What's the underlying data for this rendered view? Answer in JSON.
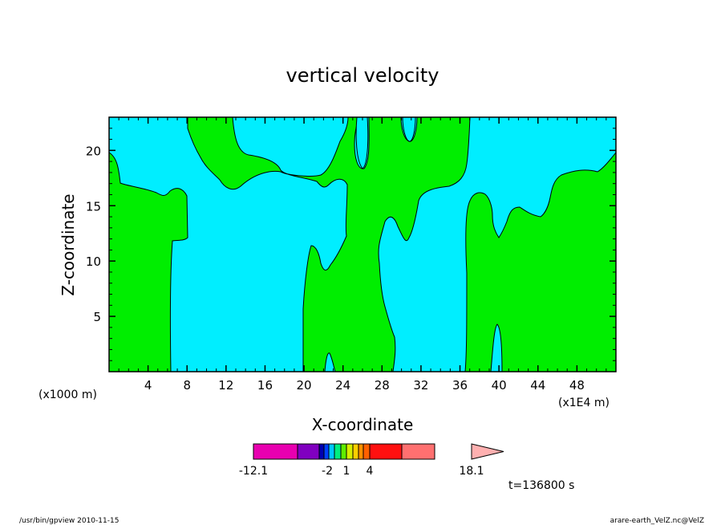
{
  "chart_data": {
    "type": "contour",
    "title": "vertical velocity",
    "xlabel": "X-coordinate",
    "ylabel": "Z-coordinate",
    "x_unit_left": "(x1000 m)",
    "x_unit_right": "(x1E4 m)",
    "x_ticks": [
      "4",
      "8",
      "12",
      "16",
      "20",
      "24",
      "28",
      "32",
      "36",
      "40",
      "44",
      "48"
    ],
    "y_ticks": [
      "5",
      "10",
      "15",
      "20"
    ],
    "xlim": [
      0,
      52
    ],
    "ylim": [
      0,
      23
    ],
    "fills": {
      "background": "#00eeff",
      "positive": "#00ee00"
    },
    "colorbar": {
      "colors": [
        "#e800b0",
        "#8000c0",
        "#0000b0",
        "#0040ff",
        "#00c8ff",
        "#00ee80",
        "#60ee00",
        "#d8ee00",
        "#ffd000",
        "#ff9000",
        "#ff6000",
        "#ff1010",
        "#ff7070",
        "#ffb0b0"
      ],
      "labels": [
        "-12.1",
        "-2",
        "1",
        "4",
        "18.1"
      ]
    },
    "time_label": "t=136800 s"
  },
  "footer": {
    "left": "/usr/bin/gpview   2010-11-15",
    "right": "arare-earth_VelZ.nc@VelZ"
  }
}
